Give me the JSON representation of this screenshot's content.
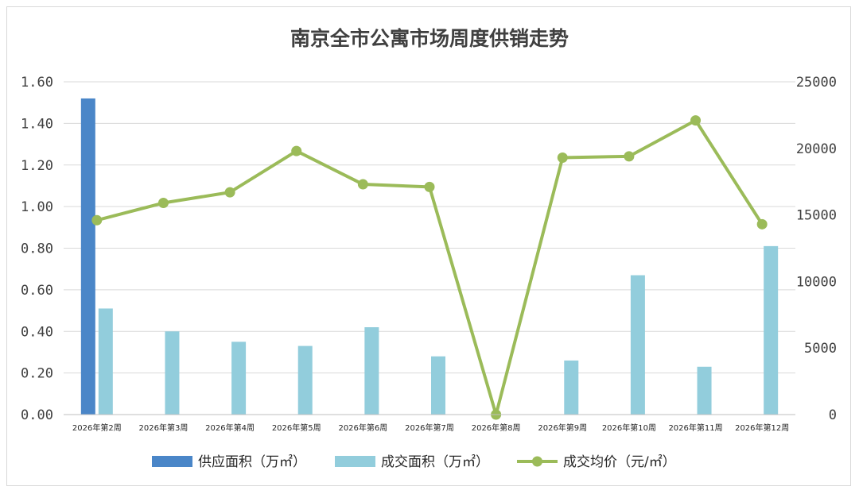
{
  "chart_data": {
    "type": "bar",
    "title": "南京全市公寓市场周度供销走势",
    "categories": [
      "2026年第2周",
      "2026年第3周",
      "2026年第4周",
      "2026年第5周",
      "2026年第6周",
      "2026年第7周",
      "2026年第8周",
      "2026年第9周",
      "2026年第10周",
      "2026年第11周",
      "2026年第12周"
    ],
    "y_left": {
      "ylim": [
        0,
        1.6
      ],
      "ticks": [
        "0.00",
        "0.20",
        "0.40",
        "0.60",
        "0.80",
        "1.00",
        "1.20",
        "1.40",
        "1.60"
      ]
    },
    "y_right": {
      "ylim": [
        0,
        25000
      ],
      "ticks": [
        "0",
        "5000",
        "10000",
        "15000",
        "20000",
        "25000"
      ]
    },
    "grid": true,
    "legend_position": "bottom",
    "series": [
      {
        "name": "供应面积（万㎡）",
        "type": "bar",
        "axis": "left",
        "color": "#4a86c8",
        "values": [
          1.52,
          0,
          0,
          0,
          0,
          0,
          0,
          0,
          0,
          0,
          0
        ]
      },
      {
        "name": "成交面积（万㎡）",
        "type": "bar",
        "axis": "left",
        "color": "#92cddc",
        "values": [
          0.51,
          0.4,
          0.35,
          0.33,
          0.42,
          0.28,
          0,
          0.26,
          0.67,
          0.23,
          0.81
        ]
      },
      {
        "name": "成交均价（元/㎡）",
        "type": "line",
        "axis": "right",
        "color": "#9bbb59",
        "values": [
          14600,
          15900,
          16700,
          19800,
          17300,
          17100,
          0,
          19300,
          19400,
          22100,
          14300
        ]
      }
    ]
  }
}
